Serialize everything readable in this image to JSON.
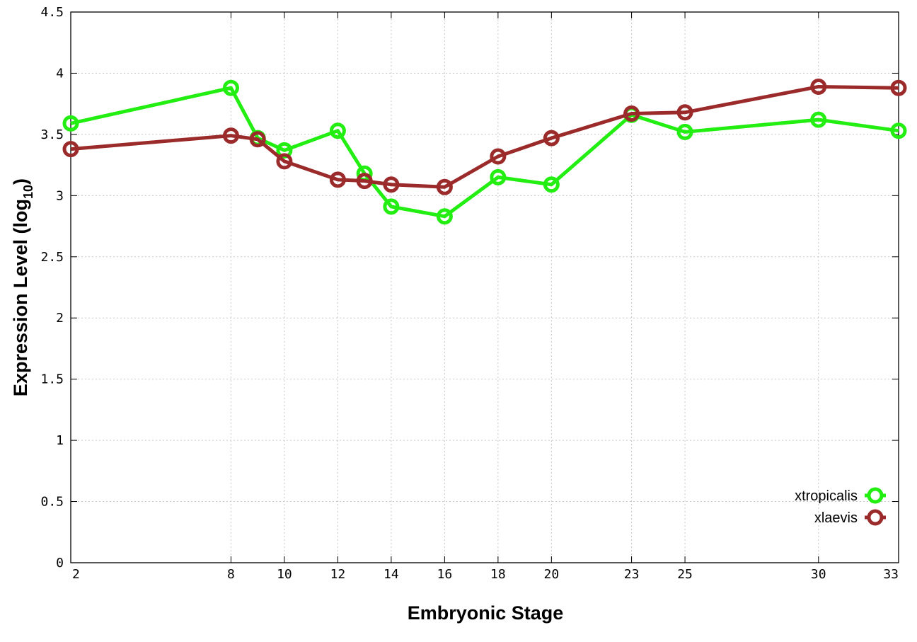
{
  "chart_data": {
    "type": "line",
    "xlabel": "Embryonic Stage",
    "ylabel": "Expression Level (log",
    "ylabel_subscript": "10",
    "ylabel_suffix": ")",
    "ylim": [
      0,
      4.5
    ],
    "xlim": [
      2,
      33
    ],
    "yticks": [
      "0",
      "0.5",
      "1",
      "1.5",
      "2",
      "2.5",
      "3",
      "3.5",
      "4",
      "4.5"
    ],
    "xticks": [
      "2",
      "8",
      "10",
      "12",
      "14",
      "16",
      "18",
      "20",
      "23",
      "25",
      "30",
      "33"
    ],
    "grid": true,
    "legend_position": "bottom-right",
    "x": [
      2,
      8,
      9,
      10,
      12,
      13,
      14,
      16,
      18,
      20,
      23,
      25,
      30,
      33
    ],
    "series": [
      {
        "name": "xtropicalis",
        "color": "#22ee11",
        "values": [
          3.59,
          3.88,
          3.47,
          3.37,
          3.53,
          3.18,
          2.91,
          2.83,
          3.15,
          3.09,
          3.66,
          3.52,
          3.62,
          3.53
        ]
      },
      {
        "name": "xlaevis",
        "color": "#9b2a2a",
        "values": [
          3.38,
          3.49,
          3.46,
          3.28,
          3.13,
          3.12,
          3.09,
          3.07,
          3.32,
          3.47,
          3.67,
          3.68,
          3.89,
          3.88
        ]
      }
    ]
  }
}
